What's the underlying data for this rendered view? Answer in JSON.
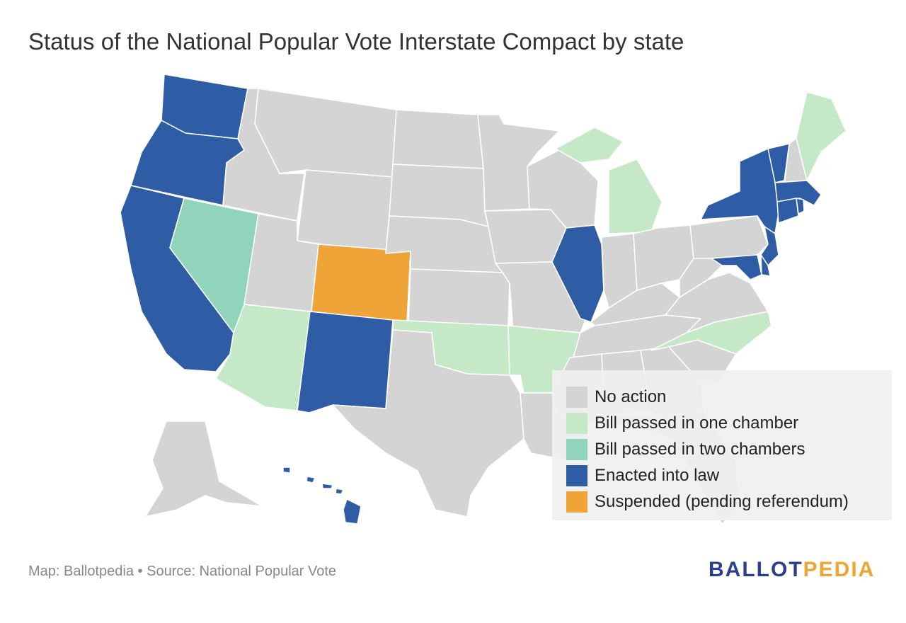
{
  "title": "Status of the National Popular Vote Interstate Compact by state",
  "legend": [
    {
      "label": "No action",
      "color": "#d4d4d4"
    },
    {
      "label": "Bill passed in one chamber",
      "color": "#c5e8c6"
    },
    {
      "label": "Bill passed in two chambers",
      "color": "#8fd4bb"
    },
    {
      "label": "Enacted into law",
      "color": "#2e5da6"
    },
    {
      "label": "Suspended (pending referendum)",
      "color": "#f0a336"
    }
  ],
  "source": "Map: Ballotpedia • Source: National Popular Vote",
  "logo": {
    "part1": "BALLOT",
    "part2": "PEDIA"
  },
  "states_by_status": {
    "No action": [
      "MT",
      "ID",
      "WY",
      "UT",
      "ND",
      "SD",
      "NE",
      "KS",
      "MN",
      "IA",
      "MO",
      "WI",
      "IN",
      "OH",
      "KY",
      "TN",
      "WV",
      "VA",
      "PA",
      "NH",
      "TX",
      "LA",
      "MS",
      "AL",
      "GA",
      "SC",
      "FL",
      "AK"
    ],
    "Bill passed in one chamber": [
      "AZ",
      "OK",
      "AR",
      "MI",
      "NC",
      "ME"
    ],
    "Bill passed in two chambers": [
      "NV"
    ],
    "Enacted into law": [
      "WA",
      "OR",
      "CA",
      "NM",
      "IL",
      "NY",
      "VT",
      "MA",
      "RI",
      "CT",
      "NJ",
      "DE",
      "MD",
      "HI"
    ],
    "Suspended (pending referendum)": [
      "CO"
    ]
  }
}
